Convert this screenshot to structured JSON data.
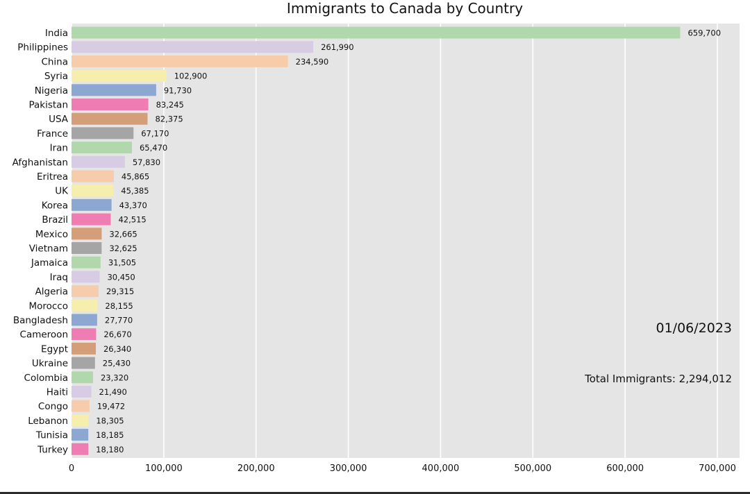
{
  "chart_data": {
    "type": "bar",
    "orientation": "horizontal",
    "title": "Immigrants to Canada by Country",
    "date_label": "01/06/2023",
    "total_label": "Total Immigrants: 2,294,012",
    "grid": true,
    "xlim": [
      0,
      700000
    ],
    "x_ticks": [
      0,
      100000,
      200000,
      300000,
      400000,
      500000,
      600000,
      700000
    ],
    "x_tick_labels": [
      "0",
      "100,000",
      "200,000",
      "300,000",
      "400,000",
      "500,000",
      "600,000",
      "700,000"
    ],
    "categories": [
      "India",
      "Philippines",
      "China",
      "Syria",
      "Nigeria",
      "Pakistan",
      "USA",
      "France",
      "Iran",
      "Afghanistan",
      "Eritrea",
      "UK",
      "Korea",
      "Brazil",
      "Mexico",
      "Vietnam",
      "Jamaica",
      "Iraq",
      "Algeria",
      "Morocco",
      "Bangladesh",
      "Cameroon",
      "Egypt",
      "Ukraine",
      "Colombia",
      "Haiti",
      "Congo",
      "Lebanon",
      "Tunisia",
      "Turkey"
    ],
    "values": [
      659700,
      261990,
      234590,
      102900,
      91730,
      83245,
      82375,
      67170,
      65470,
      57830,
      45865,
      45385,
      43370,
      42515,
      32665,
      32625,
      31505,
      30450,
      29315,
      28155,
      27770,
      26670,
      26340,
      25430,
      23320,
      21490,
      19472,
      18305,
      18185,
      18180
    ],
    "value_labels": [
      "659,700",
      "261,990",
      "234,590",
      "102,900",
      "91,730",
      "83,245",
      "82,375",
      "67,170",
      "65,470",
      "57,830",
      "45,865",
      "45,385",
      "43,370",
      "42,515",
      "32,665",
      "32,625",
      "31,505",
      "30,450",
      "29,315",
      "28,155",
      "27,770",
      "26,670",
      "26,340",
      "25,430",
      "23,320",
      "21,490",
      "19,472",
      "18,305",
      "18,185",
      "18,180"
    ],
    "palette": [
      "#b1d8ac",
      "#d7cce3",
      "#f6ccaa",
      "#f5eeac",
      "#8ca7d2",
      "#ef7cb3",
      "#d39e78",
      "#a5a5a5"
    ],
    "background_color": "#e5e5e5",
    "grid_color": "#ffffff"
  }
}
